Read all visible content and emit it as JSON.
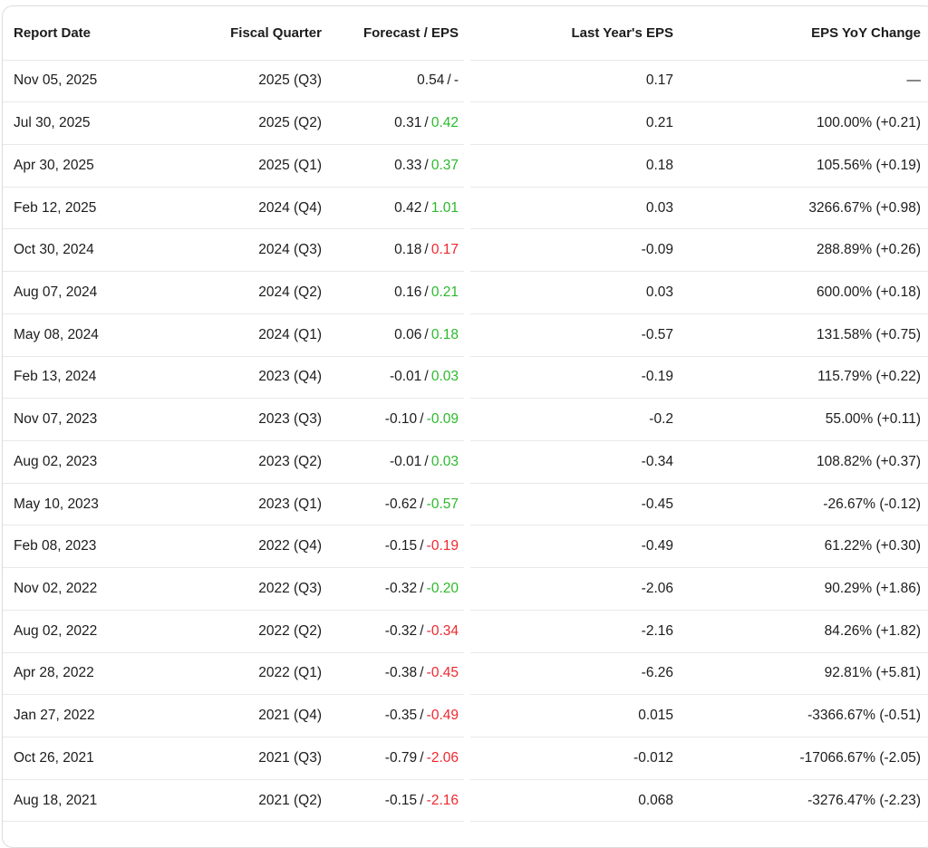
{
  "colors": {
    "positive": "#2db92d",
    "negative": "#ee2830",
    "neutral": "#1c1c1e",
    "text": "#1c1c1e",
    "row_border": "#e8e8e8",
    "card_border": "#dcdcdc",
    "background": "#ffffff"
  },
  "table": {
    "columns": [
      {
        "label": "Report Date"
      },
      {
        "label": "Fiscal Quarter"
      },
      {
        "label": "Forecast / EPS"
      },
      {
        "label": "Last Year's EPS"
      },
      {
        "label": "EPS YoY Change"
      }
    ],
    "separator": "/",
    "rows": [
      {
        "report_date": "Nov 05, 2025",
        "fiscal_quarter": "2025 (Q3)",
        "forecast": "0.54",
        "eps": "-",
        "eps_color": "neutral",
        "last_year_eps": "0.17",
        "yoy_change": "—"
      },
      {
        "report_date": "Jul 30, 2025",
        "fiscal_quarter": "2025 (Q2)",
        "forecast": "0.31",
        "eps": "0.42",
        "eps_color": "positive",
        "last_year_eps": "0.21",
        "yoy_change": "100.00% (+0.21)"
      },
      {
        "report_date": "Apr 30, 2025",
        "fiscal_quarter": "2025 (Q1)",
        "forecast": "0.33",
        "eps": "0.37",
        "eps_color": "positive",
        "last_year_eps": "0.18",
        "yoy_change": "105.56% (+0.19)"
      },
      {
        "report_date": "Feb 12, 2025",
        "fiscal_quarter": "2024 (Q4)",
        "forecast": "0.42",
        "eps": "1.01",
        "eps_color": "positive",
        "last_year_eps": "0.03",
        "yoy_change": "3266.67% (+0.98)"
      },
      {
        "report_date": "Oct 30, 2024",
        "fiscal_quarter": "2024 (Q3)",
        "forecast": "0.18",
        "eps": "0.17",
        "eps_color": "negative",
        "last_year_eps": "-0.09",
        "yoy_change": "288.89% (+0.26)"
      },
      {
        "report_date": "Aug 07, 2024",
        "fiscal_quarter": "2024 (Q2)",
        "forecast": "0.16",
        "eps": "0.21",
        "eps_color": "positive",
        "last_year_eps": "0.03",
        "yoy_change": "600.00% (+0.18)"
      },
      {
        "report_date": "May 08, 2024",
        "fiscal_quarter": "2024 (Q1)",
        "forecast": "0.06",
        "eps": "0.18",
        "eps_color": "positive",
        "last_year_eps": "-0.57",
        "yoy_change": "131.58% (+0.75)"
      },
      {
        "report_date": "Feb 13, 2024",
        "fiscal_quarter": "2023 (Q4)",
        "forecast": "-0.01",
        "eps": "0.03",
        "eps_color": "positive",
        "last_year_eps": "-0.19",
        "yoy_change": "115.79% (+0.22)"
      },
      {
        "report_date": "Nov 07, 2023",
        "fiscal_quarter": "2023 (Q3)",
        "forecast": "-0.10",
        "eps": "-0.09",
        "eps_color": "positive",
        "last_year_eps": "-0.2",
        "yoy_change": "55.00% (+0.11)"
      },
      {
        "report_date": "Aug 02, 2023",
        "fiscal_quarter": "2023 (Q2)",
        "forecast": "-0.01",
        "eps": "0.03",
        "eps_color": "positive",
        "last_year_eps": "-0.34",
        "yoy_change": "108.82% (+0.37)"
      },
      {
        "report_date": "May 10, 2023",
        "fiscal_quarter": "2023 (Q1)",
        "forecast": "-0.62",
        "eps": "-0.57",
        "eps_color": "positive",
        "last_year_eps": "-0.45",
        "yoy_change": "-26.67% (-0.12)"
      },
      {
        "report_date": "Feb 08, 2023",
        "fiscal_quarter": "2022 (Q4)",
        "forecast": "-0.15",
        "eps": "-0.19",
        "eps_color": "negative",
        "last_year_eps": "-0.49",
        "yoy_change": "61.22% (+0.30)"
      },
      {
        "report_date": "Nov 02, 2022",
        "fiscal_quarter": "2022 (Q3)",
        "forecast": "-0.32",
        "eps": "-0.20",
        "eps_color": "positive",
        "last_year_eps": "-2.06",
        "yoy_change": "90.29% (+1.86)"
      },
      {
        "report_date": "Aug 02, 2022",
        "fiscal_quarter": "2022 (Q2)",
        "forecast": "-0.32",
        "eps": "-0.34",
        "eps_color": "negative",
        "last_year_eps": "-2.16",
        "yoy_change": "84.26% (+1.82)"
      },
      {
        "report_date": "Apr 28, 2022",
        "fiscal_quarter": "2022 (Q1)",
        "forecast": "-0.38",
        "eps": "-0.45",
        "eps_color": "negative",
        "last_year_eps": "-6.26",
        "yoy_change": "92.81% (+5.81)"
      },
      {
        "report_date": "Jan 27, 2022",
        "fiscal_quarter": "2021 (Q4)",
        "forecast": "-0.35",
        "eps": "-0.49",
        "eps_color": "negative",
        "last_year_eps": "0.015",
        "yoy_change": "-3366.67% (-0.51)"
      },
      {
        "report_date": "Oct 26, 2021",
        "fiscal_quarter": "2021 (Q3)",
        "forecast": "-0.79",
        "eps": "-2.06",
        "eps_color": "negative",
        "last_year_eps": "-0.012",
        "yoy_change": "-17066.67% (-2.05)"
      },
      {
        "report_date": "Aug 18, 2021",
        "fiscal_quarter": "2021 (Q2)",
        "forecast": "-0.15",
        "eps": "-2.16",
        "eps_color": "negative",
        "last_year_eps": "0.068",
        "yoy_change": "-3276.47% (-2.23)"
      }
    ]
  }
}
